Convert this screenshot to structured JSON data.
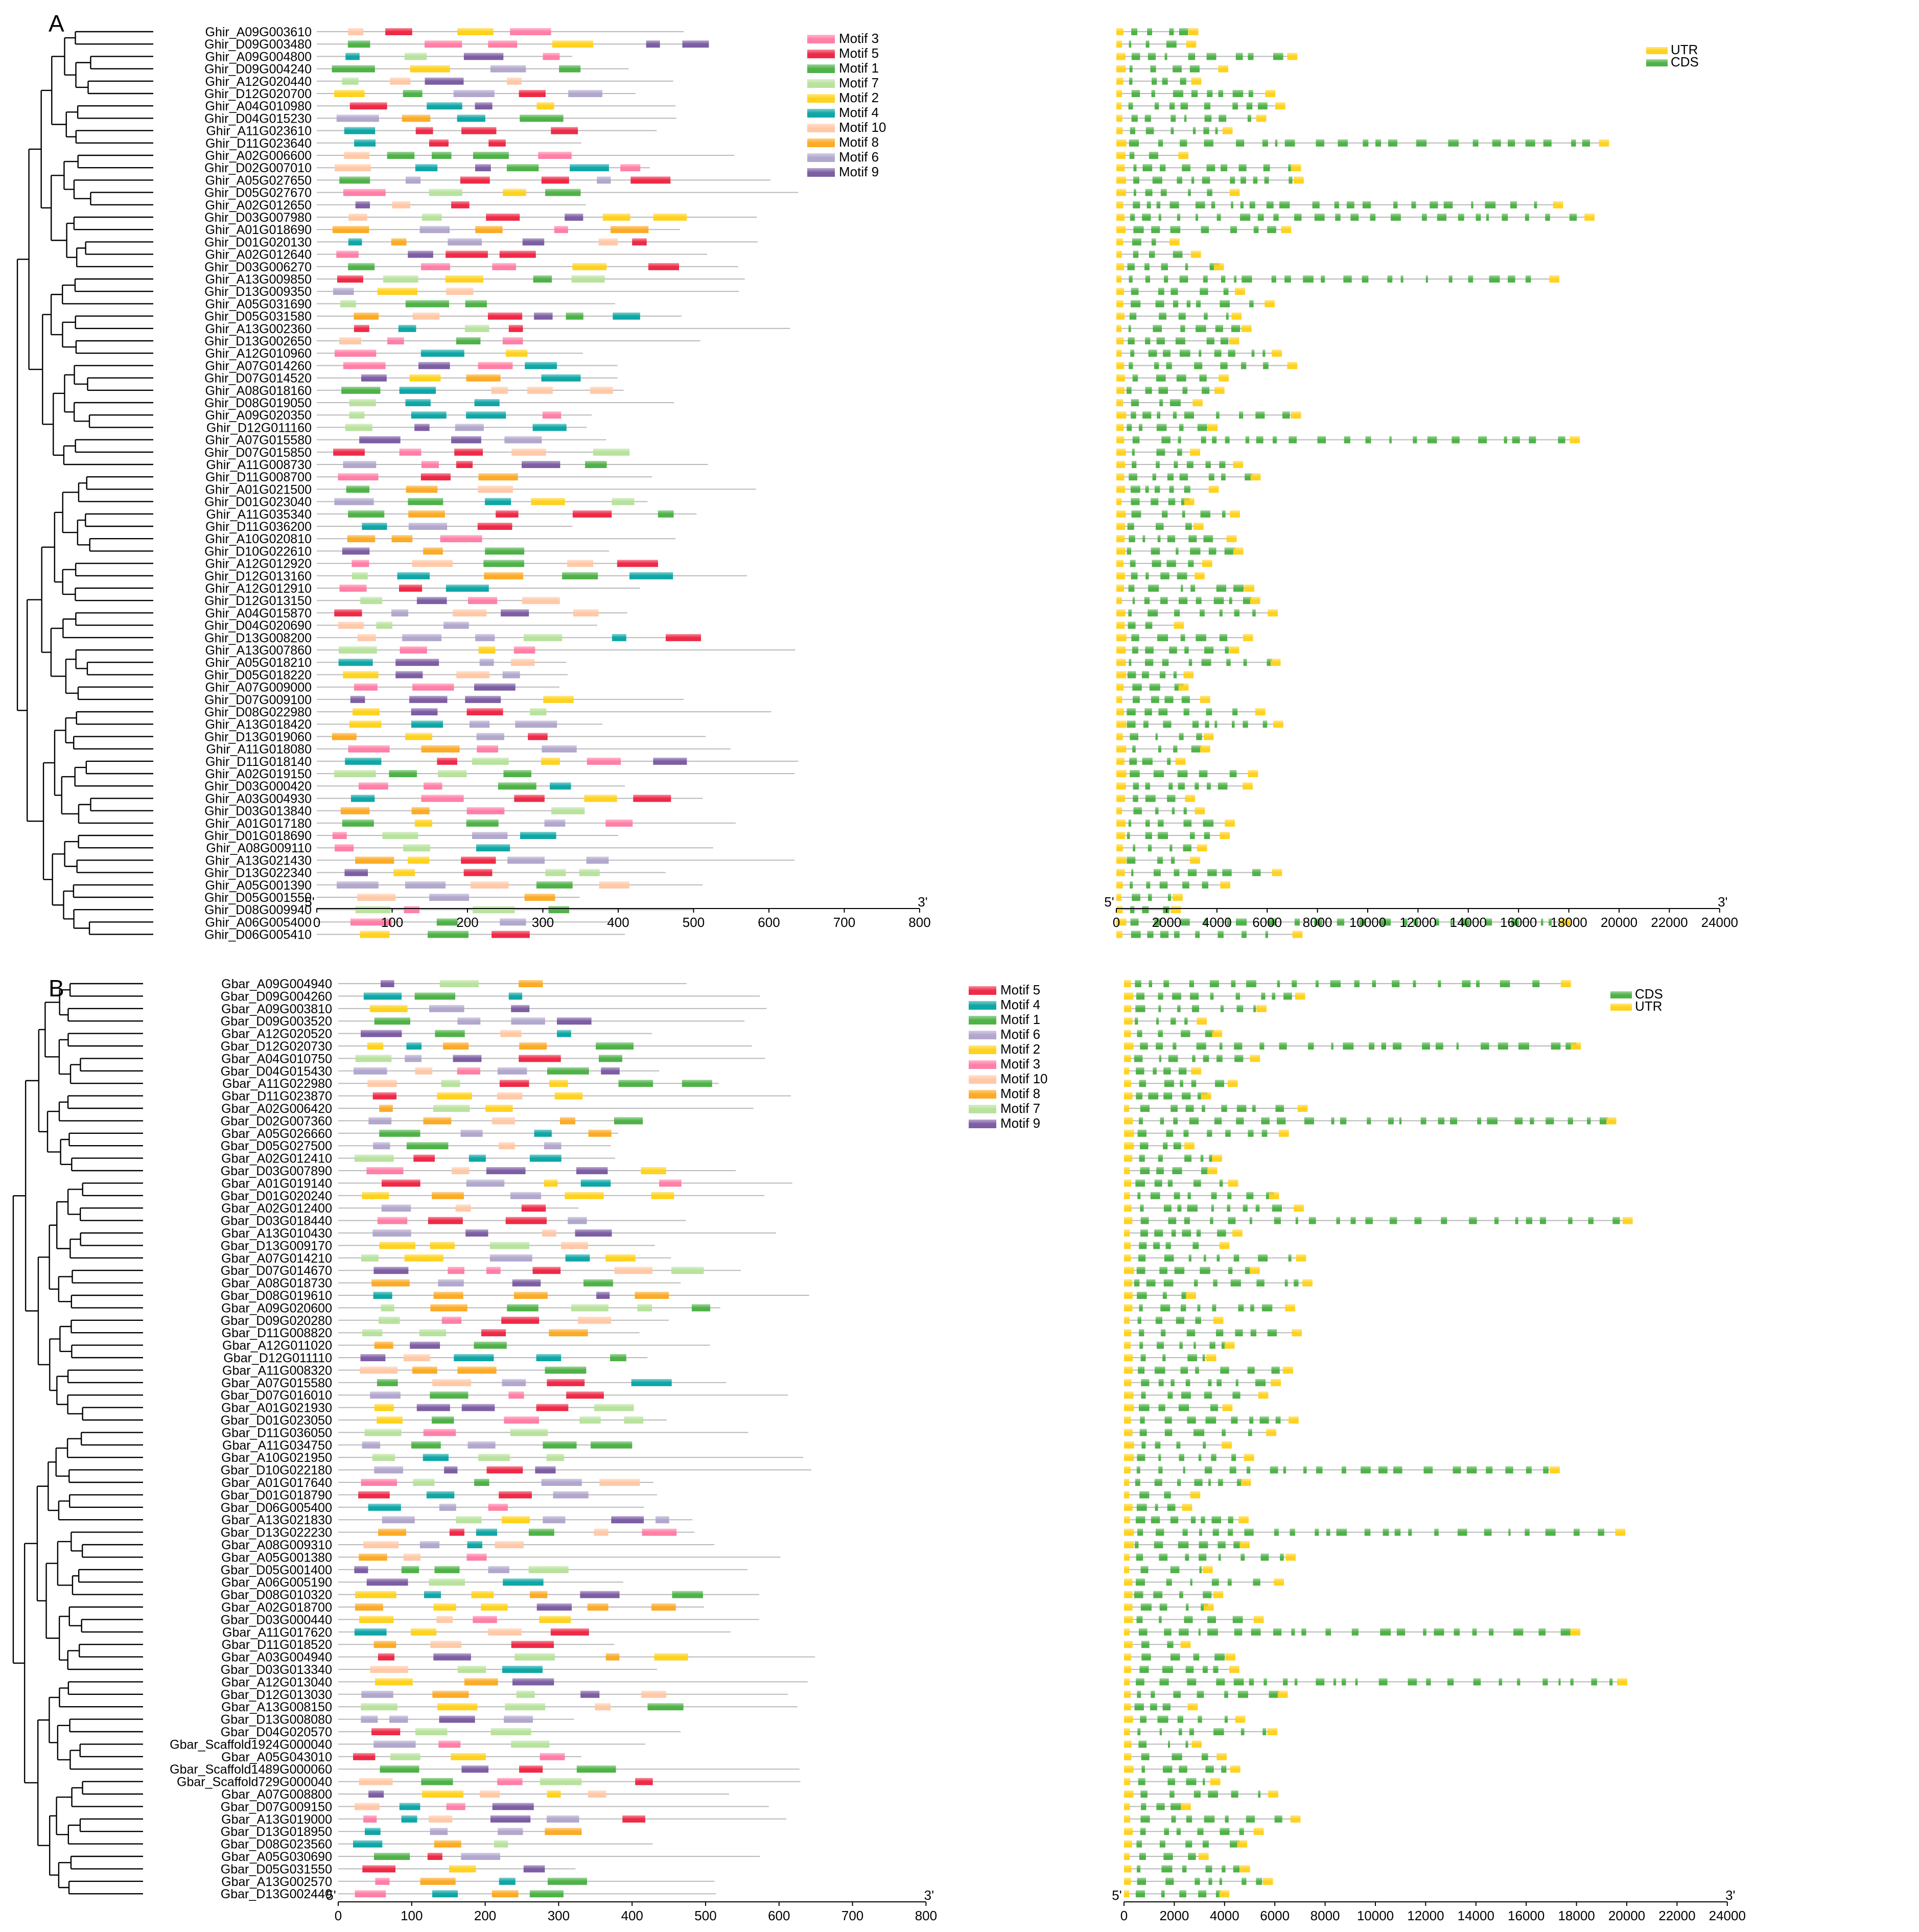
{
  "panels": [
    {
      "letter": "A",
      "gene_prefix": "Ghir_",
      "genes": [
        "A09G003610",
        "D09G003480",
        "A09G004800",
        "D09G004240",
        "A12G020440",
        "D12G020700",
        "A04G010980",
        "D04G015230",
        "A11G023610",
        "D11G023640",
        "A02G006600",
        "D02G007010",
        "A05G027650",
        "D05G027670",
        "A02G012650",
        "D03G007980",
        "A01G018690",
        "D01G020130",
        "A02G012640",
        "D03G006270",
        "A13G009850",
        "D13G009350",
        "A05G031690",
        "D05G031580",
        "A13G002360",
        "D13G002650",
        "A12G010960",
        "A07G014260",
        "D07G014520",
        "A08G018160",
        "D08G019050",
        "A09G020350",
        "D12G011160",
        "A07G015580",
        "D07G015850",
        "A11G008730",
        "D11G008700",
        "A01G021500",
        "D01G023040",
        "A11G035340",
        "D11G036200",
        "A10G020810",
        "D10G022610",
        "A12G012920",
        "D12G013160",
        "A12G012910",
        "D12G013150",
        "A04G015870",
        "D04G020690",
        "D13G008200",
        "A13G007860",
        "A05G018210",
        "D05G018220",
        "A07G009000",
        "D07G009100",
        "D08G022980",
        "A13G018420",
        "D13G019060",
        "A11G018080",
        "D11G018140",
        "A02G019150",
        "D03G000420",
        "A03G004930",
        "D03G013840",
        "A01G017180",
        "D01G018690",
        "A08G009110",
        "A13G021430",
        "D13G022340",
        "A05G001390",
        "D05G001550",
        "D08G009940",
        "A06G005400",
        "D06G005410"
      ],
      "motif_legend": [
        {
          "label": "Motif 3",
          "color": "#ff7fa7"
        },
        {
          "label": "Motif 5",
          "color": "#ee2a47"
        },
        {
          "label": "Motif 1",
          "color": "#4fb248"
        },
        {
          "label": "Motif 7",
          "color": "#b8e29d"
        },
        {
          "label": "Motif 2",
          "color": "#ffd21f"
        },
        {
          "label": "Motif 4",
          "color": "#0fa6a6"
        },
        {
          "label": "Motif 10",
          "color": "#ffc9a8"
        },
        {
          "label": "Motif 8",
          "color": "#fbab27"
        },
        {
          "label": "Motif 6",
          "color": "#b2a7cc"
        },
        {
          "label": "Motif 9",
          "color": "#7d5ea3"
        }
      ],
      "structure_legend": [
        {
          "label": "UTR",
          "color": "#ffd21f"
        },
        {
          "label": "CDS",
          "color": "#4fb248"
        }
      ],
      "motif_axis": {
        "start_label": "5'",
        "end_label": "3'",
        "ticks": [
          "0",
          "100",
          "200",
          "300",
          "400",
          "500",
          "600",
          "700",
          "800"
        ]
      },
      "structure_axis": {
        "start_label": "5'",
        "end_label": "3'",
        "ticks": [
          "0",
          "2000",
          "4000",
          "6000",
          "8000",
          "10000",
          "12000",
          "14000",
          "16000",
          "18000",
          "20000",
          "22000",
          "24000"
        ]
      }
    },
    {
      "letter": "B",
      "gene_prefix": "Gbar_",
      "genes": [
        "A09G004940",
        "D09G004260",
        "A09G003810",
        "D09G003520",
        "A12G020520",
        "D12G020730",
        "A04G010750",
        "D04G015430",
        "A11G022980",
        "D11G023870",
        "A02G006420",
        "D02G007360",
        "A05G026660",
        "D05G027500",
        "A02G012410",
        "D03G007890",
        "A01G019140",
        "D01G020240",
        "A02G012400",
        "D03G018440",
        "A13G010430",
        "D13G009170",
        "A07G014210",
        "D07G014670",
        "A08G018730",
        "D08G019610",
        "A09G020600",
        "D09G020280",
        "D11G008820",
        "A12G011020",
        "D12G011110",
        "A11G008320",
        "A07G015580",
        "D07G016010",
        "A01G021930",
        "D01G023050",
        "D11G036050",
        "A11G034750",
        "A10G021950",
        "D10G022180",
        "A01G017640",
        "D01G018790",
        "D06G005400",
        "A13G021830",
        "D13G022230",
        "A08G009310",
        "A05G001380",
        "D05G001400",
        "A06G005190",
        "D08G010320",
        "A02G018700",
        "D03G000440",
        "A11G017620",
        "D11G018520",
        "A03G004940",
        "D03G013340",
        "A12G013040",
        "D12G013030",
        "A13G008150",
        "D13G008080",
        "D04G020570",
        "Scaffold1924G000040",
        "A05G043010",
        "Scaffold1489G000060",
        "Scaffold729G000040",
        "A07G008800",
        "D07G009150",
        "A13G019000",
        "D13G018950",
        "D08G023560",
        "A05G030690",
        "D05G031550",
        "A13G002570",
        "D13G002440"
      ],
      "motif_legend": [
        {
          "label": "Motif 5",
          "color": "#ee2a47"
        },
        {
          "label": "Motif 4",
          "color": "#0fa6a6"
        },
        {
          "label": "Motif 1",
          "color": "#4fb248"
        },
        {
          "label": "Motif 6",
          "color": "#b2a7cc"
        },
        {
          "label": "Motif 2",
          "color": "#ffd21f"
        },
        {
          "label": "Motif 3",
          "color": "#ff7fa7"
        },
        {
          "label": "Motif 10",
          "color": "#ffc9a8"
        },
        {
          "label": "Motif 8",
          "color": "#fbab27"
        },
        {
          "label": "Motif 7",
          "color": "#b8e29d"
        },
        {
          "label": "Motif 9",
          "color": "#7d5ea3"
        }
      ],
      "structure_legend": [
        {
          "label": "CDS",
          "color": "#4fb248"
        },
        {
          "label": "UTR",
          "color": "#ffd21f"
        }
      ],
      "motif_axis": {
        "start_label": "5'",
        "end_label": "3'",
        "ticks": [
          "0",
          "100",
          "200",
          "300",
          "400",
          "500",
          "600",
          "700",
          "800"
        ]
      },
      "structure_axis": {
        "start_label": "5'",
        "end_label": "3'",
        "ticks": [
          "0",
          "2000",
          "4000",
          "6000",
          "8000",
          "10000",
          "12000",
          "14000",
          "16000",
          "18000",
          "20000",
          "22000",
          "24000"
        ]
      }
    }
  ]
}
